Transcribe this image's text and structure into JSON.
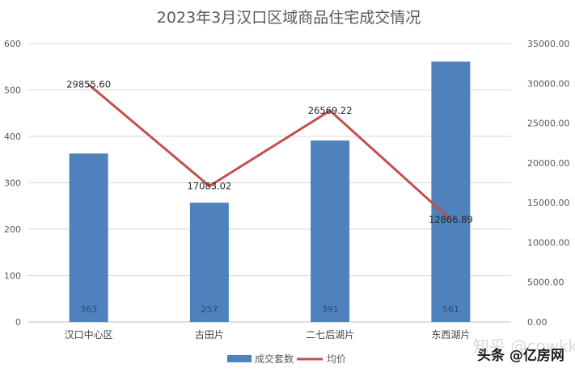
{
  "chart_data": {
    "type": "bar",
    "title": "2023年3月汉口区域商品住宅成交情况",
    "categories": [
      "汉口中心区",
      "古田片",
      "二七后湖片",
      "东西湖片"
    ],
    "series": [
      {
        "name": "成交套数",
        "type": "bar",
        "axis": "left",
        "color": "#4f81bd",
        "values": [
          363,
          257,
          391,
          561
        ],
        "labels": [
          "363",
          "257",
          "391",
          "561"
        ]
      },
      {
        "name": "均价",
        "type": "line",
        "axis": "right",
        "color": "#c0504d",
        "values": [
          29855.6,
          17083.02,
          26569.22,
          12866.89
        ],
        "labels": [
          "29855.60",
          "17083.02",
          "26569.22",
          "12866.89"
        ]
      }
    ],
    "y_left": {
      "min": 0,
      "max": 600,
      "step": 100,
      "ticks": [
        "0",
        "100",
        "200",
        "300",
        "400",
        "500",
        "600"
      ]
    },
    "y_right": {
      "min": 0,
      "max": 35000,
      "step": 5000,
      "ticks": [
        "0.00",
        "5000.00",
        "10000.00",
        "15000.00",
        "20000.00",
        "25000.00",
        "30000.00",
        "35000.00"
      ]
    },
    "xlabel": "",
    "ylabel": "",
    "grid": true,
    "legend_position": "bottom"
  },
  "legend": {
    "items": [
      {
        "label": "成交套数",
        "color": "#4f81bd",
        "kind": "bar"
      },
      {
        "label": "均价",
        "color": "#c0504d",
        "kind": "line"
      }
    ]
  },
  "watermark": {
    "text_back": "知乎 @cowkk",
    "text_front": "头条 @亿房网"
  }
}
